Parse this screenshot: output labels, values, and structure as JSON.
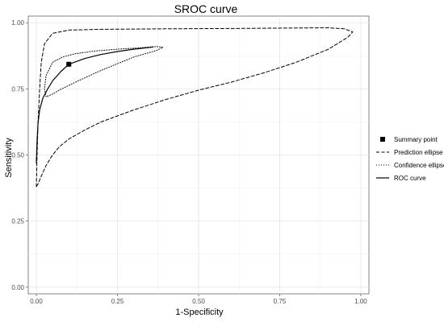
{
  "chart_data": {
    "type": "line",
    "title": "SROC curve",
    "xlabel": "1-Specificity",
    "ylabel": "Sensitivity",
    "xlim": [
      -0.025,
      1.025
    ],
    "ylim": [
      -0.025,
      1.025
    ],
    "x_ticks": [
      {
        "value": 0.0,
        "label": "0.00"
      },
      {
        "value": 0.25,
        "label": "0.25"
      },
      {
        "value": 0.5,
        "label": "0.50"
      },
      {
        "value": 0.75,
        "label": "0.75"
      },
      {
        "value": 1.0,
        "label": "1.00"
      }
    ],
    "y_ticks": [
      {
        "value": 0.0,
        "label": "0.00"
      },
      {
        "value": 0.25,
        "label": "0.25"
      },
      {
        "value": 0.5,
        "label": "0.50"
      },
      {
        "value": 0.75,
        "label": "0.75"
      },
      {
        "value": 1.0,
        "label": "1.00"
      }
    ],
    "grid": true,
    "legend_position": "right",
    "legend": [
      {
        "label": "Summary point",
        "key": "point"
      },
      {
        "label": "Prediction ellipse",
        "key": "dashed"
      },
      {
        "label": "Confidence ellipse",
        "key": "dotted"
      },
      {
        "label": "ROC curve",
        "key": "solid"
      }
    ],
    "summary_point": {
      "x": 0.1,
      "y": 0.843
    },
    "series": [
      {
        "name": "ROC curve",
        "style": "solid",
        "points": [
          [
            0.0,
            0.47
          ],
          [
            0.002,
            0.55
          ],
          [
            0.005,
            0.62
          ],
          [
            0.01,
            0.67
          ],
          [
            0.02,
            0.715
          ],
          [
            0.035,
            0.75
          ],
          [
            0.05,
            0.78
          ],
          [
            0.075,
            0.815
          ],
          [
            0.1,
            0.843
          ],
          [
            0.15,
            0.865
          ],
          [
            0.2,
            0.88
          ],
          [
            0.25,
            0.891
          ],
          [
            0.3,
            0.9
          ],
          [
            0.36,
            0.908
          ]
        ]
      },
      {
        "name": "Prediction ellipse",
        "style": "dashed",
        "points": [
          [
            0.0,
            0.38
          ],
          [
            0.002,
            0.5
          ],
          [
            0.005,
            0.62
          ],
          [
            0.01,
            0.75
          ],
          [
            0.015,
            0.85
          ],
          [
            0.025,
            0.92
          ],
          [
            0.05,
            0.96
          ],
          [
            0.1,
            0.972
          ],
          [
            0.2,
            0.975
          ],
          [
            0.4,
            0.977
          ],
          [
            0.6,
            0.978
          ],
          [
            0.8,
            0.98
          ],
          [
            0.9,
            0.981
          ],
          [
            0.95,
            0.977
          ],
          [
            0.975,
            0.965
          ],
          [
            0.96,
            0.945
          ],
          [
            0.9,
            0.9
          ],
          [
            0.8,
            0.85
          ],
          [
            0.7,
            0.81
          ],
          [
            0.6,
            0.775
          ],
          [
            0.5,
            0.745
          ],
          [
            0.4,
            0.71
          ],
          [
            0.3,
            0.67
          ],
          [
            0.2,
            0.625
          ],
          [
            0.15,
            0.595
          ],
          [
            0.1,
            0.56
          ],
          [
            0.07,
            0.53
          ],
          [
            0.05,
            0.5
          ],
          [
            0.03,
            0.46
          ],
          [
            0.015,
            0.42
          ],
          [
            0.005,
            0.39
          ],
          [
            0.0,
            0.38
          ]
        ]
      },
      {
        "name": "Confidence ellipse",
        "style": "dotted",
        "points": [
          [
            0.03,
            0.72
          ],
          [
            0.025,
            0.75
          ],
          [
            0.03,
            0.8
          ],
          [
            0.05,
            0.85
          ],
          [
            0.08,
            0.87
          ],
          [
            0.12,
            0.883
          ],
          [
            0.18,
            0.893
          ],
          [
            0.25,
            0.9
          ],
          [
            0.32,
            0.905
          ],
          [
            0.37,
            0.91
          ],
          [
            0.39,
            0.907
          ],
          [
            0.37,
            0.895
          ],
          [
            0.3,
            0.87
          ],
          [
            0.2,
            0.82
          ],
          [
            0.12,
            0.775
          ],
          [
            0.07,
            0.745
          ],
          [
            0.05,
            0.73
          ],
          [
            0.03,
            0.72
          ]
        ]
      }
    ]
  }
}
